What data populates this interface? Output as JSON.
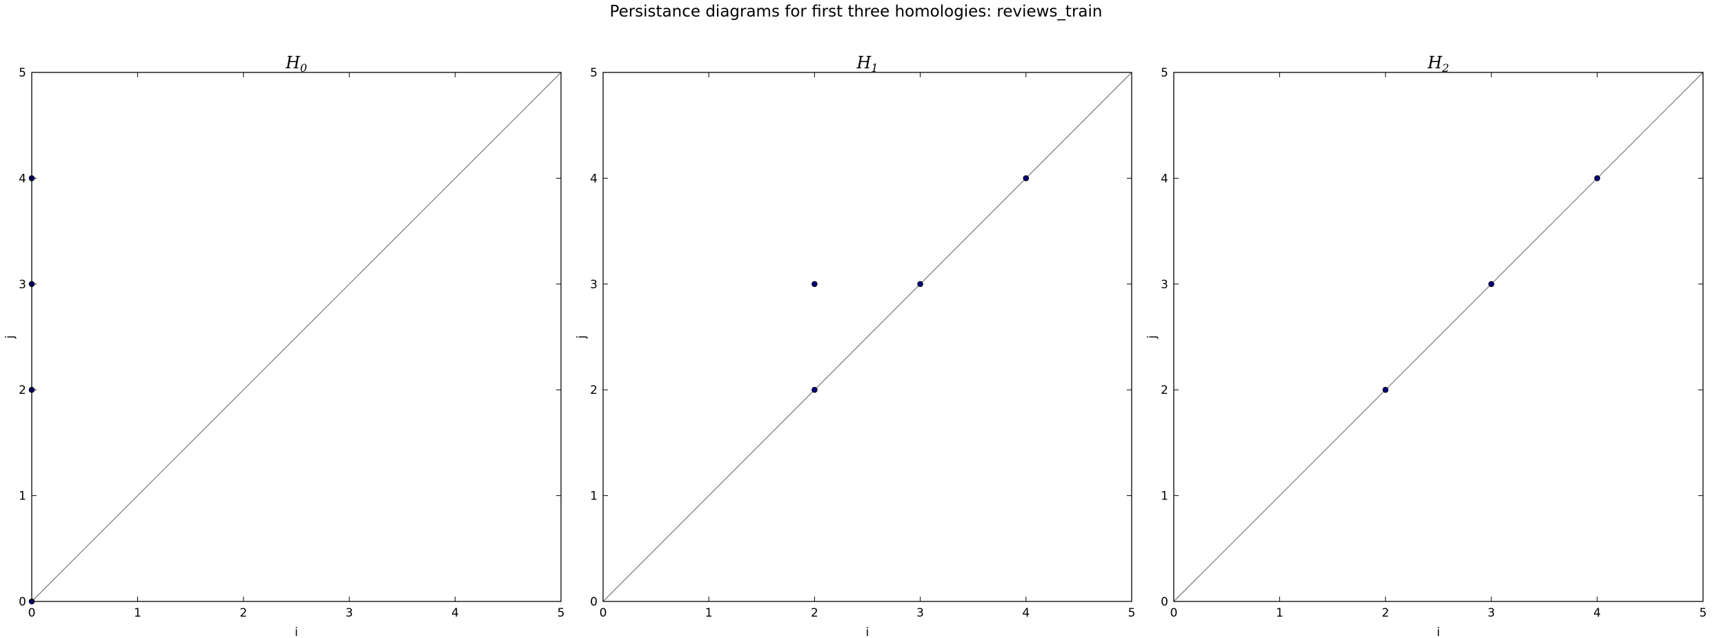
{
  "figure": {
    "title": "Persistance diagrams for first three homologies: reviews_train"
  },
  "chart_data": [
    {
      "type": "scatter",
      "title": "H",
      "title_subscript": "0",
      "xlabel": "i",
      "ylabel": "j",
      "xlim": [
        0,
        5
      ],
      "ylim": [
        0,
        5
      ],
      "xticks": [
        0,
        1,
        2,
        3,
        4,
        5
      ],
      "yticks": [
        0,
        1,
        2,
        3,
        4,
        5
      ],
      "diagonal": true,
      "grid": false,
      "series": [
        {
          "points": [
            [
              0,
              0
            ],
            [
              0,
              2
            ],
            [
              0,
              3
            ],
            [
              0,
              4
            ]
          ]
        }
      ]
    },
    {
      "type": "scatter",
      "title": "H",
      "title_subscript": "1",
      "xlabel": "i",
      "ylabel": "j",
      "xlim": [
        0,
        5
      ],
      "ylim": [
        0,
        5
      ],
      "xticks": [
        0,
        1,
        2,
        3,
        4,
        5
      ],
      "yticks": [
        0,
        1,
        2,
        3,
        4,
        5
      ],
      "diagonal": true,
      "grid": false,
      "series": [
        {
          "points": [
            [
              2,
              2
            ],
            [
              2,
              3
            ],
            [
              3,
              3
            ],
            [
              4,
              4
            ]
          ]
        }
      ]
    },
    {
      "type": "scatter",
      "title": "H",
      "title_subscript": "2",
      "xlabel": "i",
      "ylabel": "j",
      "xlim": [
        0,
        5
      ],
      "ylim": [
        0,
        5
      ],
      "xticks": [
        0,
        1,
        2,
        3,
        4,
        5
      ],
      "yticks": [
        0,
        1,
        2,
        3,
        4,
        5
      ],
      "diagonal": true,
      "grid": false,
      "series": [
        {
          "points": [
            [
              2,
              2
            ],
            [
              3,
              3
            ],
            [
              4,
              4
            ]
          ]
        }
      ]
    }
  ],
  "colors": {
    "point_fill": "#000080",
    "diagonal": "#7f7f7f",
    "frame": "#000000"
  }
}
